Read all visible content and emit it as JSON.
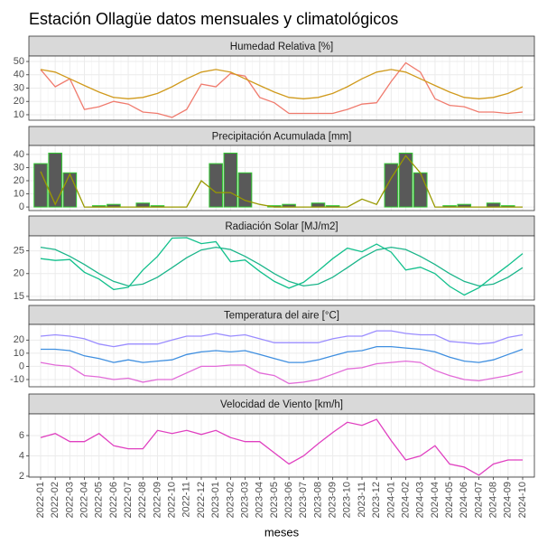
{
  "title": "Estación Ollagüe datos mensuales y climatológicos",
  "chart_data": [
    {
      "type": "line",
      "title": "Humedad Relativa [%]",
      "categories": [
        "2022-01",
        "2022-02",
        "2022-03",
        "2022-04",
        "2022-05",
        "2022-06",
        "2022-07",
        "2022-08",
        "2022-09",
        "2022-10",
        "2022-11",
        "2022-12",
        "2023-01",
        "2023-02",
        "2023-03",
        "2023-04",
        "2023-05",
        "2023-06",
        "2023-07",
        "2023-08",
        "2023-09",
        "2023-10",
        "2023-11",
        "2023-12",
        "2024-01",
        "2024-02",
        "2024-03",
        "2024-04",
        "2024-05",
        "2024-06",
        "2024-07",
        "2024-08",
        "2024-09",
        "2024-10"
      ],
      "series": [
        {
          "color": "#f07b6e",
          "values": [
            44,
            31,
            37,
            14,
            16,
            20,
            18,
            12,
            11,
            8,
            14,
            33,
            31,
            41,
            39,
            23,
            19,
            11,
            11,
            11,
            11,
            14,
            18,
            19,
            35,
            49,
            42,
            22,
            17,
            16,
            12,
            12,
            11,
            12
          ]
        },
        {
          "color": "#d09a1c",
          "values": [
            44,
            42,
            37,
            32,
            27,
            23,
            22,
            23,
            26,
            31,
            37,
            42,
            44,
            42,
            37,
            32,
            27,
            23,
            22,
            23,
            26,
            31,
            37,
            42,
            44,
            42,
            37,
            32,
            27,
            23,
            22,
            23,
            26,
            31
          ]
        }
      ],
      "ylim": [
        5.9,
        54.1
      ],
      "yticks": [
        10,
        20,
        30,
        40,
        50
      ],
      "grid": true
    },
    {
      "type": "bar",
      "title": "Precipitación Acumulada [mm]",
      "categories": [
        "2022-01",
        "2022-02",
        "2022-03",
        "2022-04",
        "2022-05",
        "2022-06",
        "2022-07",
        "2022-08",
        "2022-09",
        "2022-10",
        "2022-11",
        "2022-12",
        "2023-01",
        "2023-02",
        "2023-03",
        "2023-04",
        "2023-05",
        "2023-06",
        "2023-07",
        "2023-08",
        "2023-09",
        "2023-10",
        "2023-11",
        "2023-12",
        "2024-01",
        "2024-02",
        "2024-03",
        "2024-04",
        "2024-05",
        "2024-06",
        "2024-07",
        "2024-08",
        "2024-09",
        "2024-10"
      ],
      "series": [
        {
          "type": "bar",
          "color": "#33cc33",
          "fill": "#595959",
          "values": [
            33,
            41,
            26,
            0,
            1,
            2,
            0,
            3,
            1,
            0,
            0,
            0,
            33,
            41,
            26,
            0,
            1,
            2,
            0,
            3,
            1,
            0,
            0,
            0,
            33,
            41,
            26,
            0,
            1,
            2,
            0,
            3,
            1,
            0
          ]
        },
        {
          "type": "line",
          "color": "#999900",
          "values": [
            27,
            2,
            25,
            0,
            0,
            0,
            0,
            0,
            0,
            0,
            0,
            20,
            11,
            11,
            5,
            2,
            0,
            0,
            0,
            0,
            0,
            0,
            6,
            2,
            22,
            39,
            26,
            0,
            0,
            0,
            0,
            0,
            0,
            0
          ]
        }
      ],
      "ylim": [
        -2.7,
        46.8
      ],
      "yticks": [
        0,
        10,
        20,
        30,
        40
      ],
      "grid": true
    },
    {
      "type": "line",
      "title": "Radiación Solar [MJ/m2]",
      "categories": [
        "2022-01",
        "2022-02",
        "2022-03",
        "2022-04",
        "2022-05",
        "2022-06",
        "2022-07",
        "2022-08",
        "2022-09",
        "2022-10",
        "2022-11",
        "2022-12",
        "2023-01",
        "2023-02",
        "2023-03",
        "2023-04",
        "2023-05",
        "2023-06",
        "2023-07",
        "2023-08",
        "2023-09",
        "2023-10",
        "2023-11",
        "2023-12",
        "2024-01",
        "2024-02",
        "2024-03",
        "2024-04",
        "2024-05",
        "2024-06",
        "2024-07",
        "2024-08",
        "2024-09",
        "2024-10"
      ],
      "series": [
        {
          "color": "#1bb58a",
          "values": [
            25.8,
            25.3,
            23.8,
            22,
            20,
            18.3,
            17.3,
            17.7,
            19.2,
            21.3,
            23.5,
            25.2,
            25.8,
            25.3,
            23.8,
            22,
            20,
            18.3,
            17.3,
            17.7,
            19.2,
            21.3,
            23.5,
            25.2,
            25.8,
            25.3,
            23.8,
            22,
            20,
            18.3,
            17.3,
            17.7,
            19.2,
            21.3
          ]
        },
        {
          "color": "#12c08c",
          "values": [
            23.3,
            22.9,
            23.1,
            20.3,
            18.8,
            16.5,
            17,
            20.8,
            23.8,
            27.8,
            27.9,
            26.6,
            27,
            22.6,
            23,
            20.5,
            18.3,
            16.8,
            18.1,
            20.6,
            23.3,
            25.6,
            24.8,
            26.5,
            24.7,
            20.8,
            21.4,
            20,
            17.2,
            15.3,
            16.9,
            19.4,
            21.8,
            24.4
          ]
        }
      ],
      "ylim": [
        14.2,
        28.3
      ],
      "yticks": [
        15,
        20,
        25
      ],
      "grid": true
    },
    {
      "type": "line",
      "title": "Temperatura del aire [°C]",
      "categories": [
        "2022-01",
        "2022-02",
        "2022-03",
        "2022-04",
        "2022-05",
        "2022-06",
        "2022-07",
        "2022-08",
        "2022-09",
        "2022-10",
        "2022-11",
        "2022-12",
        "2023-01",
        "2023-02",
        "2023-03",
        "2023-04",
        "2023-05",
        "2023-06",
        "2023-07",
        "2023-08",
        "2023-09",
        "2023-10",
        "2023-11",
        "2023-12",
        "2024-01",
        "2024-02",
        "2024-03",
        "2024-04",
        "2024-05",
        "2024-06",
        "2024-07",
        "2024-08",
        "2024-09",
        "2024-10"
      ],
      "series": [
        {
          "color": "#9a8cff",
          "values": [
            23,
            24,
            23,
            21,
            17,
            15,
            17,
            17,
            17,
            20,
            23,
            23,
            25,
            23,
            24,
            21,
            18,
            18,
            18,
            18,
            21,
            23,
            23,
            27,
            27,
            25,
            24,
            24,
            19,
            18,
            17,
            18,
            22,
            24
          ]
        },
        {
          "color": "#3f8fe0",
          "values": [
            13,
            13,
            12,
            8,
            6,
            3,
            5,
            3,
            4,
            5,
            9,
            11,
            12,
            11,
            12,
            9,
            6,
            3,
            3,
            5,
            8,
            11,
            12,
            15,
            15,
            14,
            13,
            11,
            7,
            4,
            3,
            5,
            9,
            13
          ]
        },
        {
          "color": "#e26bd8",
          "values": [
            3,
            1,
            0,
            -7,
            -8,
            -10,
            -9,
            -12,
            -10,
            -10,
            -5,
            0,
            0,
            1,
            1,
            -5,
            -7,
            -13,
            -12,
            -10,
            -6,
            -2,
            -1,
            2,
            3,
            4,
            3,
            -3,
            -7,
            -10,
            -11,
            -9,
            -7,
            -4
          ]
        }
      ],
      "ylim": [
        -15.5,
        31.9
      ],
      "yticks": [
        -10,
        0,
        10,
        20
      ],
      "grid": true
    },
    {
      "type": "line",
      "title": "Velocidad de Viento [km/h]",
      "x_label": "meses",
      "categories": [
        "2022-01",
        "2022-02",
        "2022-03",
        "2022-04",
        "2022-05",
        "2022-06",
        "2022-07",
        "2022-08",
        "2022-09",
        "2022-10",
        "2022-11",
        "2022-12",
        "2023-01",
        "2023-02",
        "2023-03",
        "2023-04",
        "2023-05",
        "2023-06",
        "2023-07",
        "2023-08",
        "2023-09",
        "2023-10",
        "2023-11",
        "2023-12",
        "2024-01",
        "2024-02",
        "2024-03",
        "2024-04",
        "2024-05",
        "2024-06",
        "2024-07",
        "2024-08",
        "2024-09",
        "2024-10"
      ],
      "series": [
        {
          "color": "#e040c0",
          "values": [
            5.8,
            6.2,
            5.4,
            5.4,
            6.2,
            5,
            4.7,
            4.7,
            6.5,
            6.2,
            6.5,
            6.1,
            6.5,
            5.8,
            5.4,
            5.4,
            4.3,
            3.2,
            4,
            5.2,
            6.3,
            7.3,
            7,
            7.6,
            5.5,
            3.6,
            4,
            5,
            3.2,
            2.9,
            2.1,
            3.2,
            3.6,
            3.6
          ]
        }
      ],
      "ylim": [
        1.91,
        8.13
      ],
      "yticks": [
        2,
        4,
        6
      ],
      "grid": true
    }
  ]
}
